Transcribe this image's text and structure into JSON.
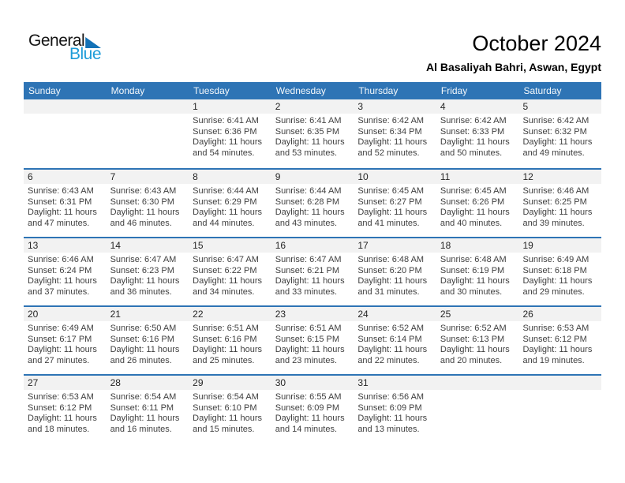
{
  "logo": {
    "text_top": "General",
    "text_bottom": "Blue"
  },
  "header": {
    "month_title": "October 2024",
    "location": "Al Basaliyah Bahri, Aswan, Egypt"
  },
  "colors": {
    "header_bar": "#2E74B5",
    "row_separator": "#2E74B5",
    "day_band": "#F2F2F2",
    "logo_blue": "#1E9CD8",
    "logo_triangle": "#1472B7"
  },
  "calendar": {
    "day_headers": [
      "Sunday",
      "Monday",
      "Tuesday",
      "Wednesday",
      "Thursday",
      "Friday",
      "Saturday"
    ],
    "weeks": [
      [
        null,
        null,
        {
          "day": "1",
          "lines": [
            "Sunrise: 6:41 AM",
            "Sunset: 6:36 PM",
            "Daylight: 11 hours",
            "and 54 minutes."
          ]
        },
        {
          "day": "2",
          "lines": [
            "Sunrise: 6:41 AM",
            "Sunset: 6:35 PM",
            "Daylight: 11 hours",
            "and 53 minutes."
          ]
        },
        {
          "day": "3",
          "lines": [
            "Sunrise: 6:42 AM",
            "Sunset: 6:34 PM",
            "Daylight: 11 hours",
            "and 52 minutes."
          ]
        },
        {
          "day": "4",
          "lines": [
            "Sunrise: 6:42 AM",
            "Sunset: 6:33 PM",
            "Daylight: 11 hours",
            "and 50 minutes."
          ]
        },
        {
          "day": "5",
          "lines": [
            "Sunrise: 6:42 AM",
            "Sunset: 6:32 PM",
            "Daylight: 11 hours",
            "and 49 minutes."
          ]
        }
      ],
      [
        {
          "day": "6",
          "lines": [
            "Sunrise: 6:43 AM",
            "Sunset: 6:31 PM",
            "Daylight: 11 hours",
            "and 47 minutes."
          ]
        },
        {
          "day": "7",
          "lines": [
            "Sunrise: 6:43 AM",
            "Sunset: 6:30 PM",
            "Daylight: 11 hours",
            "and 46 minutes."
          ]
        },
        {
          "day": "8",
          "lines": [
            "Sunrise: 6:44 AM",
            "Sunset: 6:29 PM",
            "Daylight: 11 hours",
            "and 44 minutes."
          ]
        },
        {
          "day": "9",
          "lines": [
            "Sunrise: 6:44 AM",
            "Sunset: 6:28 PM",
            "Daylight: 11 hours",
            "and 43 minutes."
          ]
        },
        {
          "day": "10",
          "lines": [
            "Sunrise: 6:45 AM",
            "Sunset: 6:27 PM",
            "Daylight: 11 hours",
            "and 41 minutes."
          ]
        },
        {
          "day": "11",
          "lines": [
            "Sunrise: 6:45 AM",
            "Sunset: 6:26 PM",
            "Daylight: 11 hours",
            "and 40 minutes."
          ]
        },
        {
          "day": "12",
          "lines": [
            "Sunrise: 6:46 AM",
            "Sunset: 6:25 PM",
            "Daylight: 11 hours",
            "and 39 minutes."
          ]
        }
      ],
      [
        {
          "day": "13",
          "lines": [
            "Sunrise: 6:46 AM",
            "Sunset: 6:24 PM",
            "Daylight: 11 hours",
            "and 37 minutes."
          ]
        },
        {
          "day": "14",
          "lines": [
            "Sunrise: 6:47 AM",
            "Sunset: 6:23 PM",
            "Daylight: 11 hours",
            "and 36 minutes."
          ]
        },
        {
          "day": "15",
          "lines": [
            "Sunrise: 6:47 AM",
            "Sunset: 6:22 PM",
            "Daylight: 11 hours",
            "and 34 minutes."
          ]
        },
        {
          "day": "16",
          "lines": [
            "Sunrise: 6:47 AM",
            "Sunset: 6:21 PM",
            "Daylight: 11 hours",
            "and 33 minutes."
          ]
        },
        {
          "day": "17",
          "lines": [
            "Sunrise: 6:48 AM",
            "Sunset: 6:20 PM",
            "Daylight: 11 hours",
            "and 31 minutes."
          ]
        },
        {
          "day": "18",
          "lines": [
            "Sunrise: 6:48 AM",
            "Sunset: 6:19 PM",
            "Daylight: 11 hours",
            "and 30 minutes."
          ]
        },
        {
          "day": "19",
          "lines": [
            "Sunrise: 6:49 AM",
            "Sunset: 6:18 PM",
            "Daylight: 11 hours",
            "and 29 minutes."
          ]
        }
      ],
      [
        {
          "day": "20",
          "lines": [
            "Sunrise: 6:49 AM",
            "Sunset: 6:17 PM",
            "Daylight: 11 hours",
            "and 27 minutes."
          ]
        },
        {
          "day": "21",
          "lines": [
            "Sunrise: 6:50 AM",
            "Sunset: 6:16 PM",
            "Daylight: 11 hours",
            "and 26 minutes."
          ]
        },
        {
          "day": "22",
          "lines": [
            "Sunrise: 6:51 AM",
            "Sunset: 6:16 PM",
            "Daylight: 11 hours",
            "and 25 minutes."
          ]
        },
        {
          "day": "23",
          "lines": [
            "Sunrise: 6:51 AM",
            "Sunset: 6:15 PM",
            "Daylight: 11 hours",
            "and 23 minutes."
          ]
        },
        {
          "day": "24",
          "lines": [
            "Sunrise: 6:52 AM",
            "Sunset: 6:14 PM",
            "Daylight: 11 hours",
            "and 22 minutes."
          ]
        },
        {
          "day": "25",
          "lines": [
            "Sunrise: 6:52 AM",
            "Sunset: 6:13 PM",
            "Daylight: 11 hours",
            "and 20 minutes."
          ]
        },
        {
          "day": "26",
          "lines": [
            "Sunrise: 6:53 AM",
            "Sunset: 6:12 PM",
            "Daylight: 11 hours",
            "and 19 minutes."
          ]
        }
      ],
      [
        {
          "day": "27",
          "lines": [
            "Sunrise: 6:53 AM",
            "Sunset: 6:12 PM",
            "Daylight: 11 hours",
            "and 18 minutes."
          ]
        },
        {
          "day": "28",
          "lines": [
            "Sunrise: 6:54 AM",
            "Sunset: 6:11 PM",
            "Daylight: 11 hours",
            "and 16 minutes."
          ]
        },
        {
          "day": "29",
          "lines": [
            "Sunrise: 6:54 AM",
            "Sunset: 6:10 PM",
            "Daylight: 11 hours",
            "and 15 minutes."
          ]
        },
        {
          "day": "30",
          "lines": [
            "Sunrise: 6:55 AM",
            "Sunset: 6:09 PM",
            "Daylight: 11 hours",
            "and 14 minutes."
          ]
        },
        {
          "day": "31",
          "lines": [
            "Sunrise: 6:56 AM",
            "Sunset: 6:09 PM",
            "Daylight: 11 hours",
            "and 13 minutes."
          ]
        },
        null,
        null
      ]
    ]
  }
}
